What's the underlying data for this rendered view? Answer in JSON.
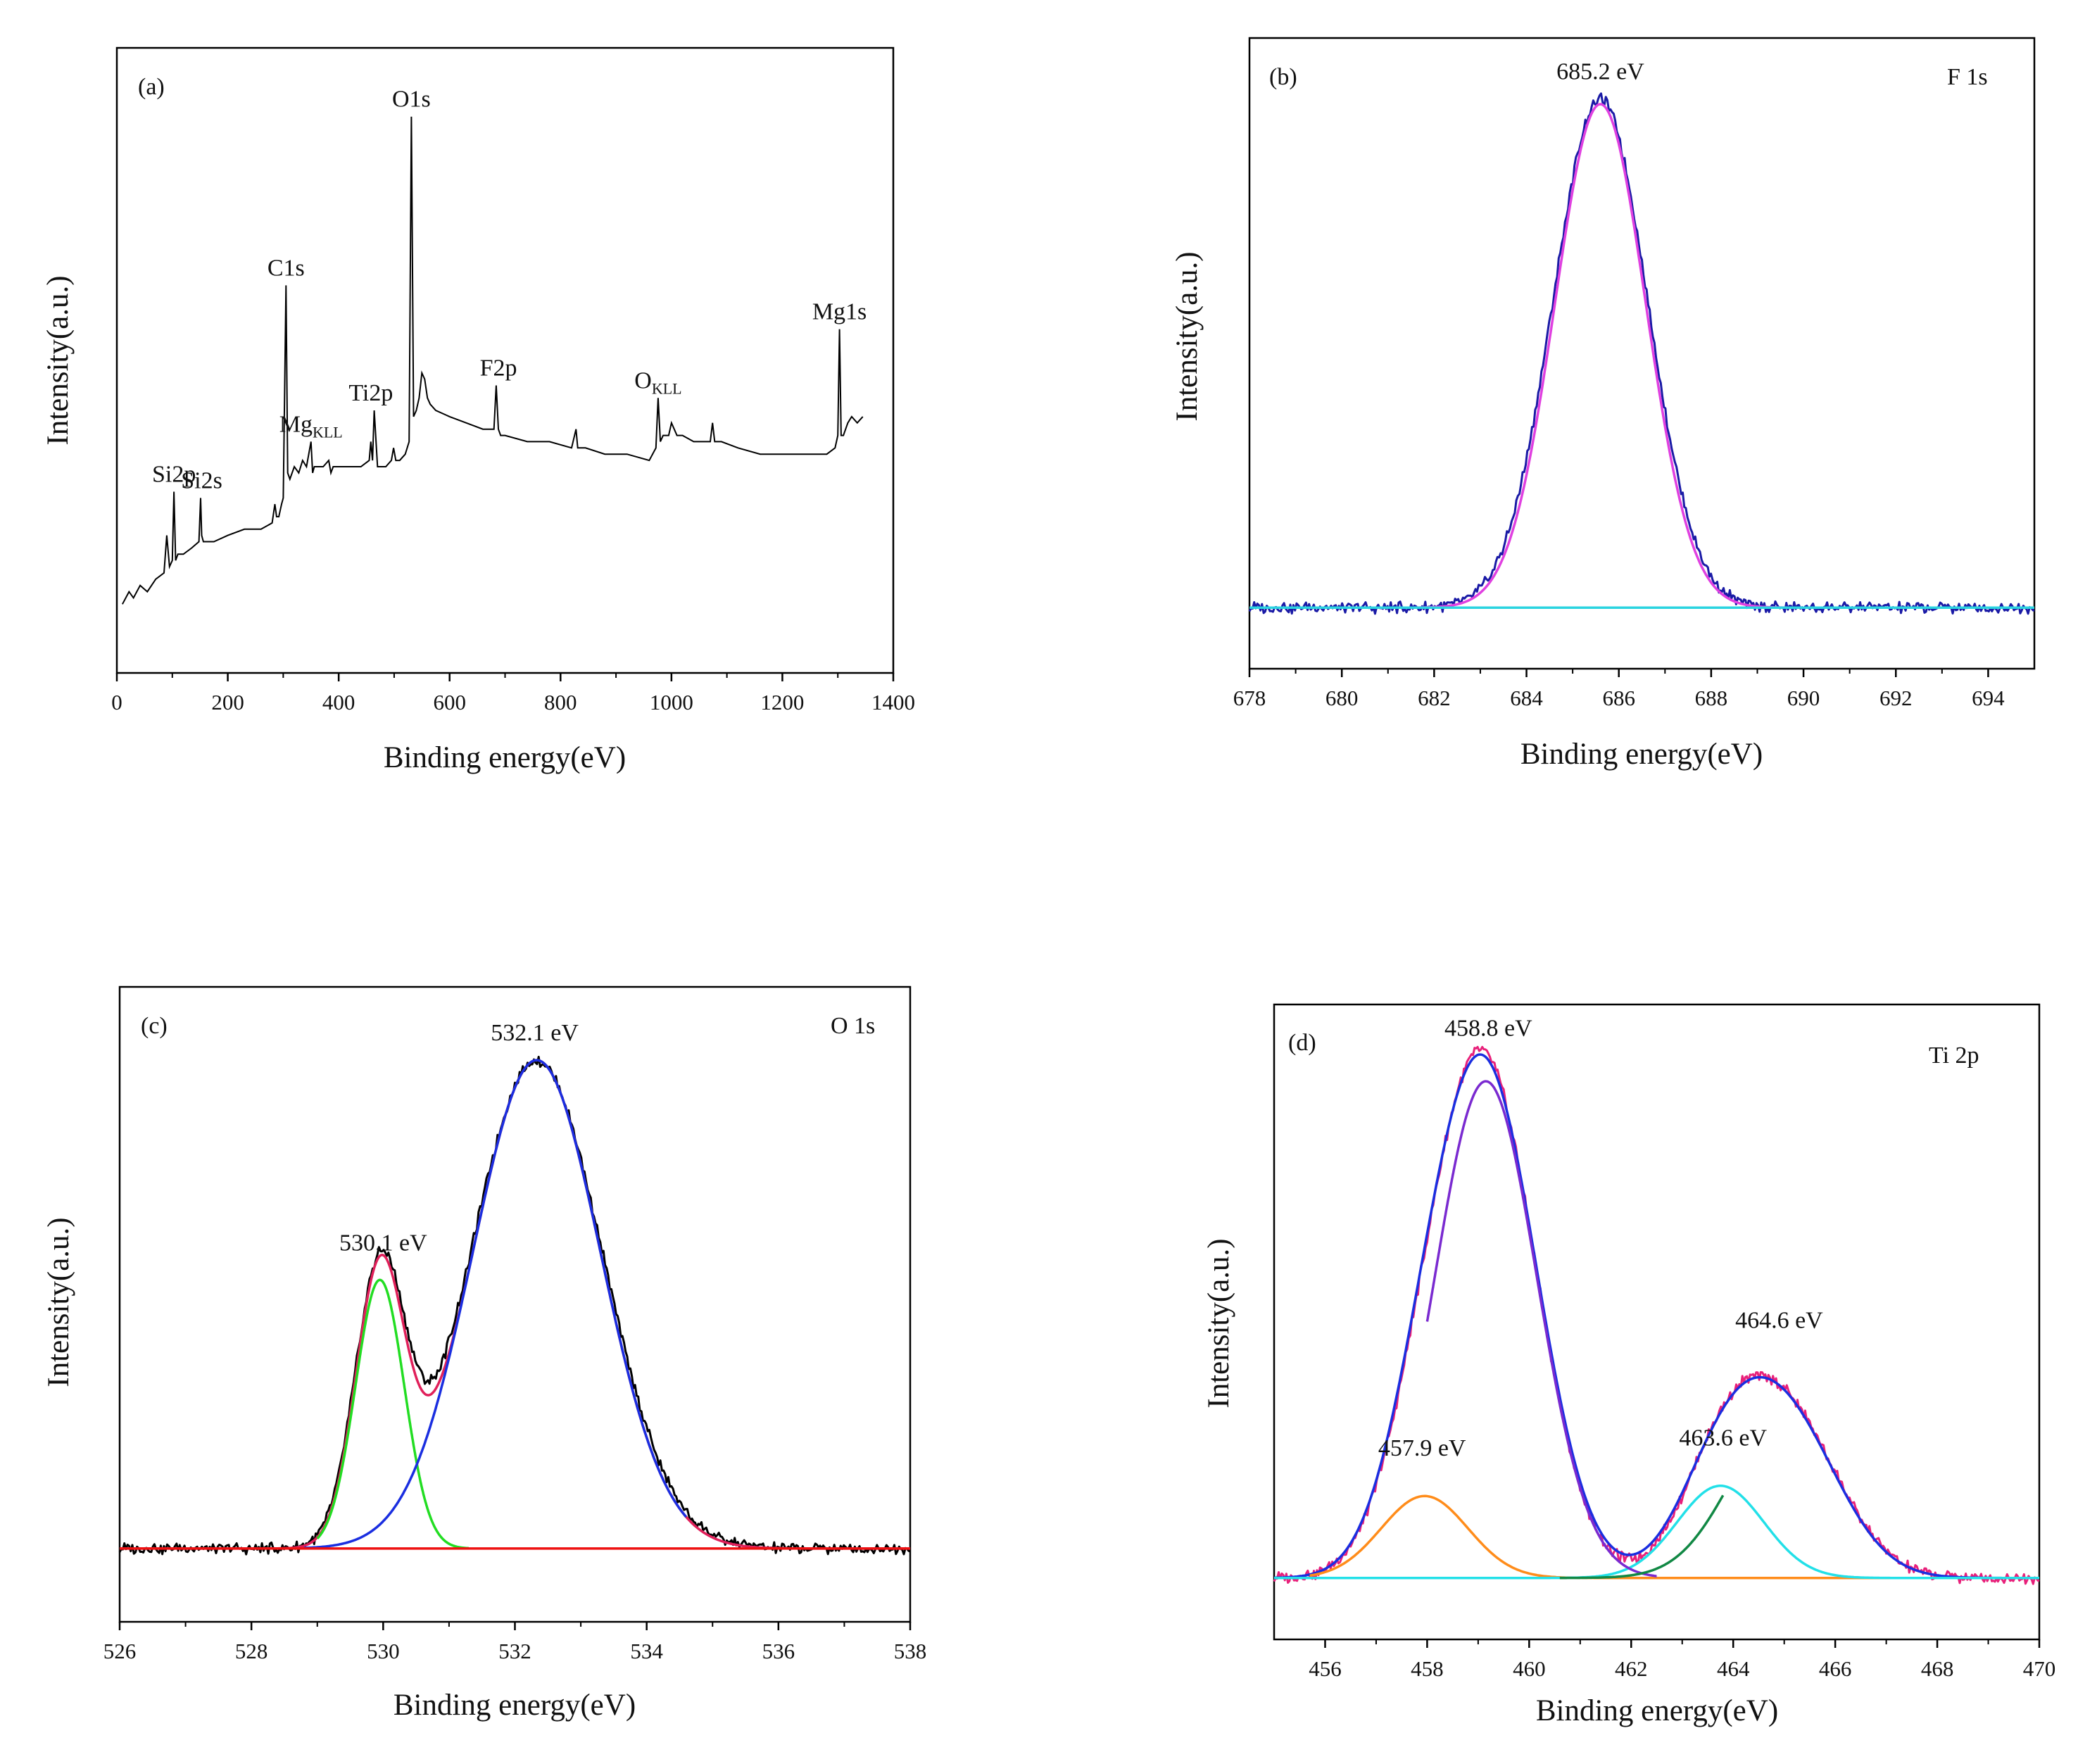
{
  "chart_data": [
    {
      "panel": "a",
      "type": "line",
      "panel_label": "(a)",
      "xlabel": "Binding energy(eV)",
      "ylabel": "Intensity(a.u.)",
      "xlim": [
        0,
        1400
      ],
      "ylim": [
        0,
        100
      ],
      "xticks": [
        0,
        200,
        400,
        600,
        800,
        1000,
        1200,
        1400
      ],
      "series": [
        {
          "name": "survey",
          "color": "#000000",
          "x": [
            10,
            22,
            30,
            42,
            55,
            70,
            85,
            90,
            95,
            100,
            103,
            106,
            110,
            120,
            135,
            148,
            151,
            153,
            156,
            160,
            175,
            200,
            230,
            260,
            280,
            285,
            288,
            292,
            297,
            300,
            305,
            308,
            312,
            320,
            328,
            335,
            342,
            350,
            353,
            356,
            362,
            372,
            382,
            386,
            390,
            400,
            420,
            440,
            455,
            458,
            461,
            464,
            470,
            485,
            495,
            499,
            503,
            510,
            520,
            527,
            531,
            535,
            540,
            545,
            550,
            555,
            560,
            565,
            575,
            600,
            630,
            660,
            680,
            684,
            688,
            692,
            700,
            740,
            780,
            820,
            828,
            831,
            835,
            845,
            880,
            920,
            960,
            972,
            976,
            980,
            985,
            995,
            1000,
            1005,
            1010,
            1020,
            1040,
            1060,
            1070,
            1074,
            1078,
            1090,
            1120,
            1160,
            1200,
            1230,
            1260,
            1280,
            1295,
            1300,
            1303,
            1306,
            1310,
            1318,
            1325,
            1335,
            1345
          ],
          "values": [
            11,
            13,
            12,
            14,
            13,
            15,
            16,
            22,
            17,
            18,
            29,
            18,
            19,
            19,
            20,
            21,
            28,
            22,
            21,
            21,
            21,
            22,
            23,
            23,
            24,
            27,
            25,
            25,
            27,
            28,
            62,
            32,
            31,
            33,
            32,
            34,
            33,
            37,
            32,
            33,
            33,
            33,
            34,
            32,
            33,
            33,
            33,
            33,
            34,
            37,
            34,
            42,
            33,
            33,
            34,
            36,
            34,
            34,
            35,
            37,
            89,
            41,
            42,
            44,
            48,
            47,
            44,
            43,
            42,
            41,
            40,
            39,
            39,
            46,
            39,
            38,
            38,
            37,
            37,
            36,
            39,
            36,
            36,
            36,
            35,
            35,
            34,
            36,
            44,
            37,
            38,
            38,
            40,
            39,
            38,
            38,
            37,
            37,
            37,
            40,
            37,
            37,
            36,
            35,
            35,
            35,
            35,
            35,
            36,
            38,
            55,
            38,
            38,
            40,
            41,
            40,
            41
          ]
        }
      ],
      "annotations": [
        {
          "name": "si2p",
          "text": "Si2p",
          "sub": "",
          "x": 103,
          "y": 29
        },
        {
          "name": "si2s",
          "text": "Si2s",
          "sub": "",
          "x": 153,
          "y": 28
        },
        {
          "name": "c1s",
          "text": "C1s",
          "sub": "",
          "x": 305,
          "y": 62
        },
        {
          "name": "mg-kll",
          "text": "Mg",
          "sub": "KLL",
          "x": 350,
          "y": 37
        },
        {
          "name": "ti2p",
          "text": "Ti2p",
          "sub": "",
          "x": 458,
          "y": 42
        },
        {
          "name": "o1s",
          "text": "O1s",
          "sub": "",
          "x": 531,
          "y": 89
        },
        {
          "name": "f2p",
          "text": "F2p",
          "sub": "",
          "x": 688,
          "y": 46
        },
        {
          "name": "o-kll",
          "text": "O",
          "sub": "KLL",
          "x": 976,
          "y": 44
        },
        {
          "name": "mg1s",
          "text": "Mg1s",
          "sub": "",
          "x": 1303,
          "y": 55
        }
      ]
    },
    {
      "panel": "b",
      "type": "line",
      "panel_label": "(b)",
      "title": "F 1s",
      "xlabel": "Binding energy(eV)",
      "ylabel": "Intensity(a.u.)",
      "xlim": [
        678,
        695
      ],
      "ylim": [
        -0.12,
        1.12
      ],
      "xticks": [
        678,
        680,
        682,
        684,
        686,
        688,
        690,
        692,
        694
      ],
      "peak_label": {
        "text": "685.2 eV",
        "x": 685.6,
        "y": 1.0
      },
      "series": [
        {
          "name": "raw",
          "color": "#1a1aa6",
          "model": "noisy",
          "peaks": [
            {
              "center": 685.6,
              "sigma": 1.02,
              "amp": 1.0
            }
          ],
          "baseline": 0
        },
        {
          "name": "fit",
          "color": "#e040e0",
          "model": "gauss",
          "peaks": [
            {
              "center": 685.6,
              "sigma": 0.98,
              "amp": 0.99
            }
          ],
          "baseline": 0
        },
        {
          "name": "background",
          "color": "#2ad4e0",
          "model": "flat",
          "baseline": 0
        }
      ]
    },
    {
      "panel": "c",
      "type": "line",
      "panel_label": "(c)",
      "title": "O 1s",
      "xlabel": "Binding energy(eV)",
      "ylabel": "Intensity(a.u.)",
      "xlim": [
        526,
        538
      ],
      "ylim": [
        -0.15,
        1.15
      ],
      "xticks": [
        526,
        528,
        530,
        532,
        534,
        536,
        538
      ],
      "peak_labels": [
        {
          "text": "530.1 eV",
          "x": 530.0,
          "y": 0.57
        },
        {
          "text": "532.1 eV",
          "x": 532.3,
          "y": 1.0
        }
      ],
      "series": [
        {
          "name": "raw",
          "color": "#000000",
          "model": "noisy",
          "peaks": [
            {
              "center": 529.95,
              "sigma": 0.38,
              "amp": 0.55
            },
            {
              "center": 532.33,
              "sigma": 1.0,
              "amp": 1.0
            }
          ],
          "baseline": 0
        },
        {
          "name": "envelope",
          "color": "#e0205a",
          "model": "gauss",
          "peaks": [
            {
              "center": 529.95,
              "sigma": 0.37,
              "amp": 0.55
            },
            {
              "center": 532.33,
              "sigma": 0.97,
              "amp": 1.0
            }
          ],
          "baseline": 0
        },
        {
          "name": "component-530.1",
          "color": "#22dd22",
          "model": "gauss",
          "peaks": [
            {
              "center": 529.95,
              "sigma": 0.37,
              "amp": 0.55
            }
          ],
          "baseline": 0,
          "clip": [
            529.0,
            531.3
          ]
        },
        {
          "name": "component-532.1",
          "color": "#1a2ee0",
          "model": "gauss",
          "peaks": [
            {
              "center": 532.33,
              "sigma": 0.97,
              "amp": 1.0
            }
          ],
          "baseline": 0,
          "clip": [
            528.8,
            534.6
          ]
        },
        {
          "name": "background",
          "color": "#ee1111",
          "model": "flat",
          "baseline": 0
        }
      ]
    },
    {
      "panel": "d",
      "type": "line",
      "panel_label": "(d)",
      "title": "Ti 2p",
      "xlabel": "Binding energy(eV)",
      "ylabel": "Intensity(a.u.)",
      "xlim": [
        455,
        470
      ],
      "ylim": [
        -0.12,
        1.12
      ],
      "xticks": [
        456,
        458,
        460,
        462,
        464,
        466,
        468,
        470
      ],
      "peak_labels": [
        {
          "text": "458.8 eV",
          "x": 459.2,
          "y": 1.02
        },
        {
          "text": "457.9 eV",
          "x": 457.9,
          "y": 0.2
        },
        {
          "text": "463.6 eV",
          "x": 463.8,
          "y": 0.22
        },
        {
          "text": "464.6 eV",
          "x": 464.9,
          "y": 0.45
        }
      ],
      "series": [
        {
          "name": "raw",
          "color": "#e8207a",
          "model": "noisy",
          "peaks": [
            {
              "center": 459.15,
              "sigma": 1.0,
              "amp": 0.98
            },
            {
              "center": 457.9,
              "sigma": 0.8,
              "amp": 0.16
            },
            {
              "center": 463.75,
              "sigma": 0.8,
              "amp": 0.17
            },
            {
              "center": 465.0,
              "sigma": 1.05,
              "amp": 0.32
            }
          ],
          "baseline": 0
        },
        {
          "name": "envelope",
          "color": "#1a2ee0",
          "model": "gauss",
          "peaks": [
            {
              "center": 459.15,
              "sigma": 1.02,
              "amp": 0.97
            },
            {
              "center": 457.9,
              "sigma": 0.8,
              "amp": 0.16
            },
            {
              "center": 463.75,
              "sigma": 0.85,
              "amp": 0.17
            },
            {
              "center": 465.0,
              "sigma": 1.05,
              "amp": 0.31
            }
          ],
          "baseline": 0
        },
        {
          "name": "component-457.9",
          "color": "#ff8c1a",
          "model": "gauss",
          "peaks": [
            {
              "center": 457.95,
              "sigma": 0.85,
              "amp": 0.16
            }
          ],
          "baseline": 0,
          "clip": [
            455.7,
            470
          ]
        },
        {
          "name": "component-463.6",
          "color": "#22e0e8",
          "model": "gauss",
          "peaks": [
            {
              "center": 463.75,
              "sigma": 0.85,
              "amp": 0.18
            }
          ],
          "baseline": 0,
          "clip": [
            455,
            470
          ]
        },
        {
          "name": "component-458.8",
          "color": "#7a2ad0",
          "model": "gauss",
          "peaks": [
            {
              "center": 459.15,
              "sigma": 1.0,
              "amp": 0.97
            }
          ],
          "baseline": 0,
          "clip": [
            458,
            462.5
          ]
        },
        {
          "name": "component-464.6",
          "color": "#118844",
          "model": "gauss",
          "peaks": [
            {
              "center": 465.0,
              "sigma": 1.05,
              "amp": 0.31
            }
          ],
          "baseline": 0,
          "clip": [
            460.6,
            463.8
          ]
        }
      ]
    }
  ]
}
